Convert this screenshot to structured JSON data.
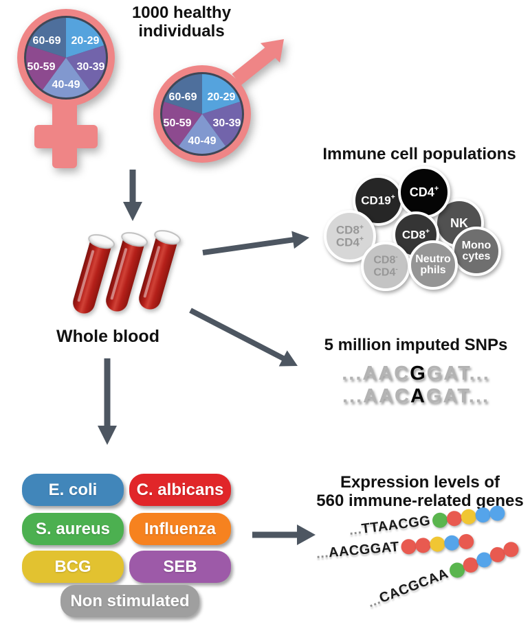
{
  "header": {
    "title": "1000 healthy individuals"
  },
  "demographics": {
    "age_groups": [
      "20-29",
      "30-39",
      "40-49",
      "50-59",
      "60-69"
    ],
    "age_colors": [
      "#55a3dd",
      "#7264ab",
      "#8198cf",
      "#8d4a8f",
      "#4e6f9c"
    ],
    "symbol_color": "#ef8586",
    "ring_color": "#3f4756"
  },
  "blood": {
    "label": "Whole blood",
    "tube_color": "#b5201a",
    "tube_count": 3
  },
  "immune_cells": {
    "title": "Immune cell populations",
    "cells": [
      {
        "base": "CD19",
        "sup": "+",
        "color": "#262626"
      },
      {
        "base": "CD4",
        "sup": "+",
        "color": "#050505"
      },
      {
        "base": "NK",
        "sup": "",
        "color": "#515151"
      },
      {
        "line1": "CD8",
        "sup1": "+",
        "line2": "CD4",
        "sup2": "+",
        "color": "#d7d7d7"
      },
      {
        "base": "CD8",
        "sup": "+",
        "color": "#353535"
      },
      {
        "line1": "Mono",
        "line2": "cytes",
        "color": "#6f6f6f"
      },
      {
        "line1": "CD8",
        "sup1": "-",
        "line2": "CD4",
        "sup2": "-",
        "color": "#c4c4c4"
      },
      {
        "line1": "Neutro",
        "line2": "phils",
        "color": "#959595"
      }
    ]
  },
  "snps": {
    "title": "5 million imputed SNPs",
    "sequences": [
      {
        "prefix": "...AAC",
        "variant": "G",
        "suffix": "GAT..."
      },
      {
        "prefix": "...AAC",
        "variant": "A",
        "suffix": "GAT..."
      }
    ]
  },
  "stimuli": {
    "items": [
      {
        "label": "E. coli",
        "color": "#4186ba"
      },
      {
        "label": "C. albicans",
        "color": "#e12629"
      },
      {
        "label": "S. aureus",
        "color": "#4cb050"
      },
      {
        "label": "Influenza",
        "color": "#f6821f"
      },
      {
        "label": "BCG",
        "color": "#e2c230"
      },
      {
        "label": "SEB",
        "color": "#9d5aa8"
      },
      {
        "label": "Non stimulated",
        "color": "#9f9f9f"
      }
    ]
  },
  "genes": {
    "title_line1": "Expression levels of",
    "title_line2": "560 immune-related genes",
    "palette": {
      "green": "#5ab54e",
      "red": "#e85a50",
      "yellow": "#f0c633",
      "blue": "#55a4ea"
    },
    "rows": [
      {
        "ellipsis": "...",
        "seq": "TTAACGG",
        "dots": [
          "green",
          "red",
          "yellow",
          "blue",
          "blue"
        ]
      },
      {
        "ellipsis": "...",
        "seq": "AACGGAT",
        "dots": [
          "red",
          "red",
          "yellow",
          "blue",
          "red"
        ]
      },
      {
        "ellipsis": "...",
        "seq": "CACGCAA",
        "dots": [
          "green",
          "red",
          "blue",
          "red",
          "red"
        ]
      }
    ]
  },
  "colors": {
    "arrow": "#4d5661"
  }
}
